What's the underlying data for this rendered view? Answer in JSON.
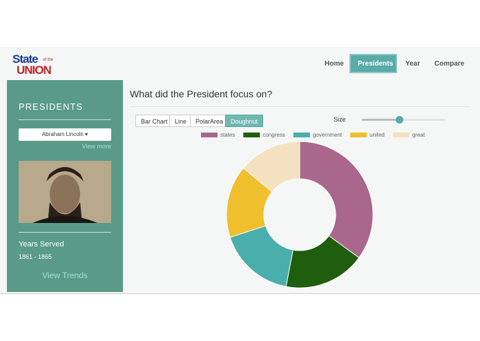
{
  "logo": {
    "top": "State",
    "small": "of the",
    "bottom": "UNION"
  },
  "nav": [
    "Home",
    "Presidents",
    "Year",
    "Compare"
  ],
  "sidebar": {
    "heading": "PRESIDENTS",
    "dropdown": "Abraham Lincoln",
    "view_more": "View more",
    "years_label": "Years Served",
    "years": "1861 - 1865",
    "view_trends": "View Trends"
  },
  "main": {
    "title": "What did the President focus on?",
    "chart_buttons": [
      "Bar Chart",
      "Line",
      "PolarArea",
      "Doughnut"
    ],
    "size_label": "Size"
  },
  "chart_data": {
    "type": "doughnut",
    "categories": [
      "states",
      "congress",
      "government",
      "united",
      "great"
    ],
    "values": [
      35,
      18,
      17,
      16,
      14
    ],
    "colors": [
      "#a8678b",
      "#1e5e0e",
      "#4aaeac",
      "#f0bf2e",
      "#f4e1c0"
    ]
  }
}
